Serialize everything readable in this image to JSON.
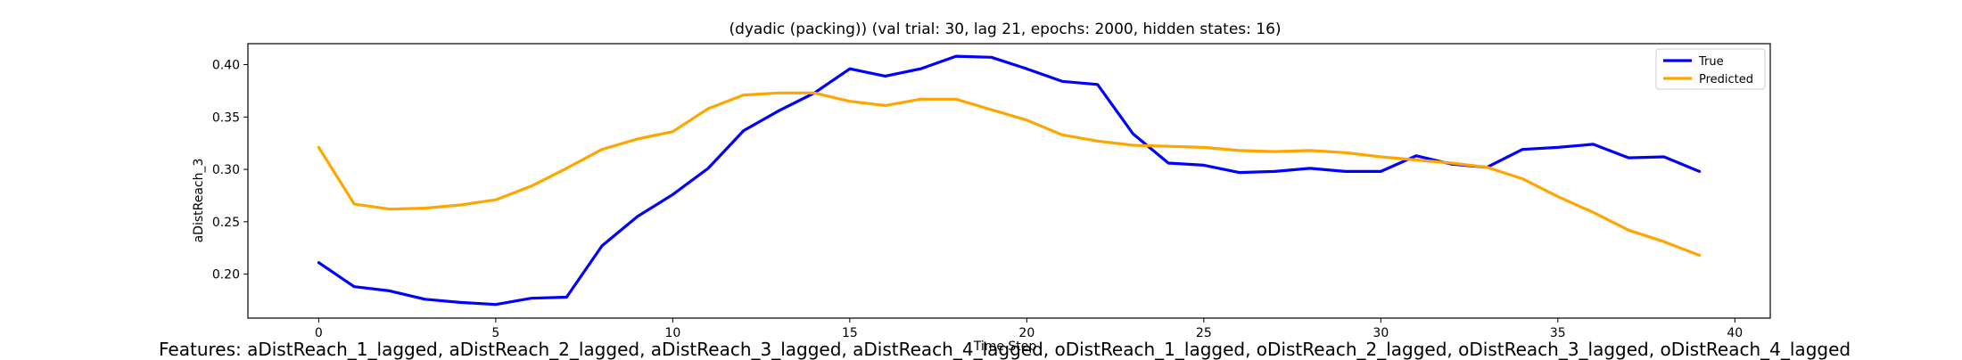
{
  "chart_data": {
    "type": "line",
    "title": "(dyadic (packing)) (val trial: 30, lag 21, epochs: 2000, hidden states: 16)",
    "xlabel": "Time Step",
    "ylabel": "aDistReach_3",
    "xlim": [
      -2,
      41
    ],
    "ylim": [
      0.158,
      0.42
    ],
    "xticks": [
      0,
      5,
      10,
      15,
      20,
      25,
      30,
      35,
      40
    ],
    "yticks": [
      0.2,
      0.25,
      0.3,
      0.35,
      0.4
    ],
    "grid": false,
    "legend_position": "upper right",
    "x": [
      0,
      1,
      2,
      3,
      4,
      5,
      6,
      7,
      8,
      9,
      10,
      11,
      12,
      13,
      14,
      15,
      16,
      17,
      18,
      19,
      20,
      21,
      22,
      23,
      24,
      25,
      26,
      27,
      28,
      29,
      30,
      31,
      32,
      33,
      34,
      35,
      36,
      37,
      38,
      39
    ],
    "series": [
      {
        "name": "True",
        "color": "#0000ff",
        "values": [
          0.211,
          0.188,
          0.184,
          0.176,
          0.173,
          0.171,
          0.177,
          0.178,
          0.227,
          0.255,
          0.276,
          0.301,
          0.337,
          0.356,
          0.373,
          0.396,
          0.389,
          0.396,
          0.408,
          0.407,
          0.396,
          0.384,
          0.381,
          0.334,
          0.306,
          0.304,
          0.297,
          0.298,
          0.301,
          0.298,
          0.298,
          0.313,
          0.305,
          0.302,
          0.319,
          0.321,
          0.324,
          0.311,
          0.312,
          0.298
        ]
      },
      {
        "name": "Predicted",
        "color": "#ffa500",
        "values": [
          0.321,
          0.267,
          0.262,
          0.263,
          0.266,
          0.271,
          0.284,
          0.301,
          0.319,
          0.329,
          0.336,
          0.358,
          0.371,
          0.373,
          0.373,
          0.365,
          0.361,
          0.367,
          0.367,
          0.357,
          0.347,
          0.333,
          0.327,
          0.323,
          0.322,
          0.321,
          0.318,
          0.317,
          0.318,
          0.316,
          0.312,
          0.309,
          0.306,
          0.302,
          0.291,
          0.274,
          0.259,
          0.242,
          0.231,
          0.218
        ]
      }
    ]
  },
  "features_text": "Features: aDistReach_1_lagged, aDistReach_2_lagged, aDistReach_3_lagged, aDistReach_4_lagged, oDistReach_1_lagged, oDistReach_2_lagged, oDistReach_3_lagged, oDistReach_4_lagged"
}
